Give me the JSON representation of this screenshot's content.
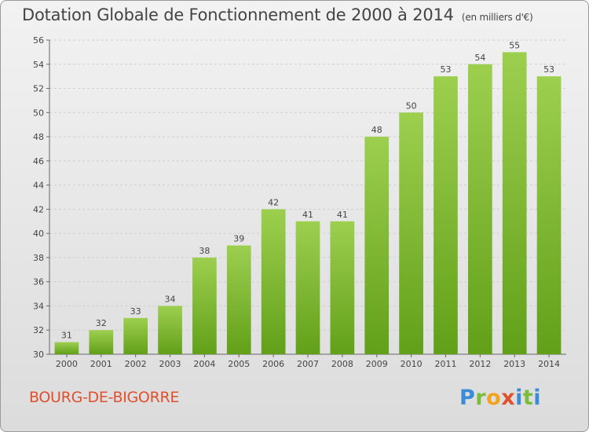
{
  "title": "Dotation Globale de Fonctionnement de 2000 à 2014",
  "subtitle": "(en milliers d'€)",
  "city": "BOURG-DE-BIGORRE",
  "logo": "Proxiti",
  "colors": {
    "bar_top": "#9dcf4f",
    "bar_bottom": "#62a019",
    "city": "#e0502d",
    "text": "#444444"
  },
  "chart_data": {
    "type": "bar",
    "title": "Dotation Globale de Fonctionnement de 2000 à 2014",
    "subtitle": "(en milliers d'€)",
    "xlabel": "",
    "ylabel": "",
    "categories": [
      "2000",
      "2001",
      "2002",
      "2003",
      "2004",
      "2005",
      "2006",
      "2007",
      "2008",
      "2009",
      "2010",
      "2011",
      "2012",
      "2013",
      "2014"
    ],
    "values": [
      31,
      32,
      33,
      34,
      38,
      39,
      42,
      41,
      41,
      48,
      50,
      53,
      54,
      55,
      53
    ],
    "ylim": [
      30,
      56
    ],
    "yticks": [
      30,
      32,
      34,
      36,
      38,
      40,
      42,
      44,
      46,
      48,
      50,
      52,
      54,
      56
    ],
    "grid": true,
    "data_labels": true
  }
}
